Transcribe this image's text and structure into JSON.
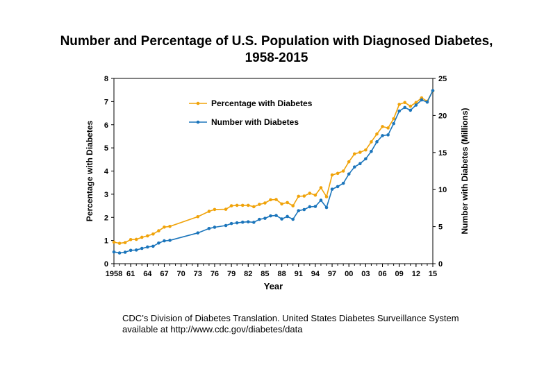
{
  "chart_data": {
    "type": "line",
    "title": "Number and Percentage of U.S. Population with Diagnosed Diabetes,",
    "subtitle": "1958-2015",
    "xlabel": "Year",
    "ylabel_left": "Percentage with Diabetes",
    "ylabel_right": "Number with Diabetes (Millions)",
    "xlim": [
      1958,
      2015
    ],
    "ylim_left": [
      0,
      8
    ],
    "ylim_right": [
      0,
      25
    ],
    "y_left_ticks": [
      "0",
      "1",
      "2",
      "3",
      "4",
      "5",
      "6",
      "7",
      "8"
    ],
    "y_right_ticks": [
      "0",
      "5",
      "10",
      "15",
      "20",
      "25"
    ],
    "x_ticks": [
      {
        "year": 1958,
        "label": "1958"
      },
      {
        "year": 1961,
        "label": "61"
      },
      {
        "year": 1964,
        "label": "64"
      },
      {
        "year": 1967,
        "label": "67"
      },
      {
        "year": 1970,
        "label": "70"
      },
      {
        "year": 1973,
        "label": "73"
      },
      {
        "year": 1976,
        "label": "76"
      },
      {
        "year": 1979,
        "label": "79"
      },
      {
        "year": 1982,
        "label": "82"
      },
      {
        "year": 1985,
        "label": "85"
      },
      {
        "year": 1988,
        "label": "88"
      },
      {
        "year": 1991,
        "label": "91"
      },
      {
        "year": 1994,
        "label": "94"
      },
      {
        "year": 1997,
        "label": "97"
      },
      {
        "year": 2000,
        "label": "00"
      },
      {
        "year": 2003,
        "label": "03"
      },
      {
        "year": 2006,
        "label": "06"
      },
      {
        "year": 2009,
        "label": "09"
      },
      {
        "year": 2012,
        "label": "12"
      },
      {
        "year": 2015,
        "label": "15"
      }
    ],
    "legend_position": "upper-left-inside",
    "series": [
      {
        "name": "Percentage with Diabetes",
        "axis": "left",
        "color": "#F0A30A",
        "x": [
          1958,
          1959,
          1960,
          1961,
          1962,
          1963,
          1964,
          1965,
          1966,
          1967,
          1968,
          1973,
          1975,
          1976,
          1978,
          1979,
          1980,
          1981,
          1982,
          1983,
          1984,
          1985,
          1986,
          1987,
          1988,
          1989,
          1990,
          1991,
          1992,
          1993,
          1994,
          1995,
          1996,
          1997,
          1998,
          1999,
          2000,
          2001,
          2002,
          2003,
          2004,
          2005,
          2006,
          2007,
          2008,
          2009,
          2010,
          2011,
          2012,
          2013,
          2014,
          2015
        ],
        "y": [
          0.93,
          0.88,
          0.91,
          1.04,
          1.05,
          1.14,
          1.2,
          1.28,
          1.42,
          1.58,
          1.61,
          2.03,
          2.26,
          2.34,
          2.35,
          2.5,
          2.52,
          2.52,
          2.52,
          2.46,
          2.56,
          2.62,
          2.76,
          2.77,
          2.58,
          2.64,
          2.5,
          2.91,
          2.92,
          3.04,
          2.96,
          3.28,
          2.89,
          3.83,
          3.9,
          4.0,
          4.4,
          4.74,
          4.81,
          4.91,
          5.26,
          5.6,
          5.92,
          5.86,
          6.26,
          6.88,
          6.96,
          6.8,
          6.96,
          7.16,
          7.01,
          7.46
        ]
      },
      {
        "name": "Number with Diabetes",
        "axis": "right",
        "color": "#1B75BB",
        "x": [
          1958,
          1959,
          1960,
          1961,
          1962,
          1963,
          1964,
          1965,
          1966,
          1967,
          1968,
          1973,
          1975,
          1976,
          1978,
          1979,
          1980,
          1981,
          1982,
          1983,
          1984,
          1985,
          1986,
          1987,
          1988,
          1989,
          1990,
          1991,
          1992,
          1993,
          1994,
          1995,
          1996,
          1997,
          1998,
          1999,
          2000,
          2001,
          2002,
          2003,
          2004,
          2005,
          2006,
          2007,
          2008,
          2009,
          2010,
          2011,
          2012,
          2013,
          2014,
          2015
        ],
        "y": [
          1.58,
          1.45,
          1.55,
          1.8,
          1.84,
          2.06,
          2.25,
          2.35,
          2.78,
          3.08,
          3.15,
          4.15,
          4.75,
          4.92,
          5.15,
          5.42,
          5.51,
          5.6,
          5.65,
          5.58,
          5.98,
          6.12,
          6.45,
          6.5,
          6.03,
          6.37,
          5.99,
          7.15,
          7.3,
          7.68,
          7.72,
          8.56,
          7.58,
          10.05,
          10.4,
          10.85,
          12.1,
          13.05,
          13.5,
          14.15,
          15.15,
          16.45,
          17.28,
          17.38,
          18.9,
          20.6,
          21.08,
          20.7,
          21.4,
          22.1,
          21.8,
          23.36
        ]
      }
    ]
  },
  "footnote": {
    "line1": "CDC’s Division of Diabetes Translation. United States Diabetes Surveillance System",
    "line2": "available at http://www.cdc.gov/diabetes/data"
  }
}
